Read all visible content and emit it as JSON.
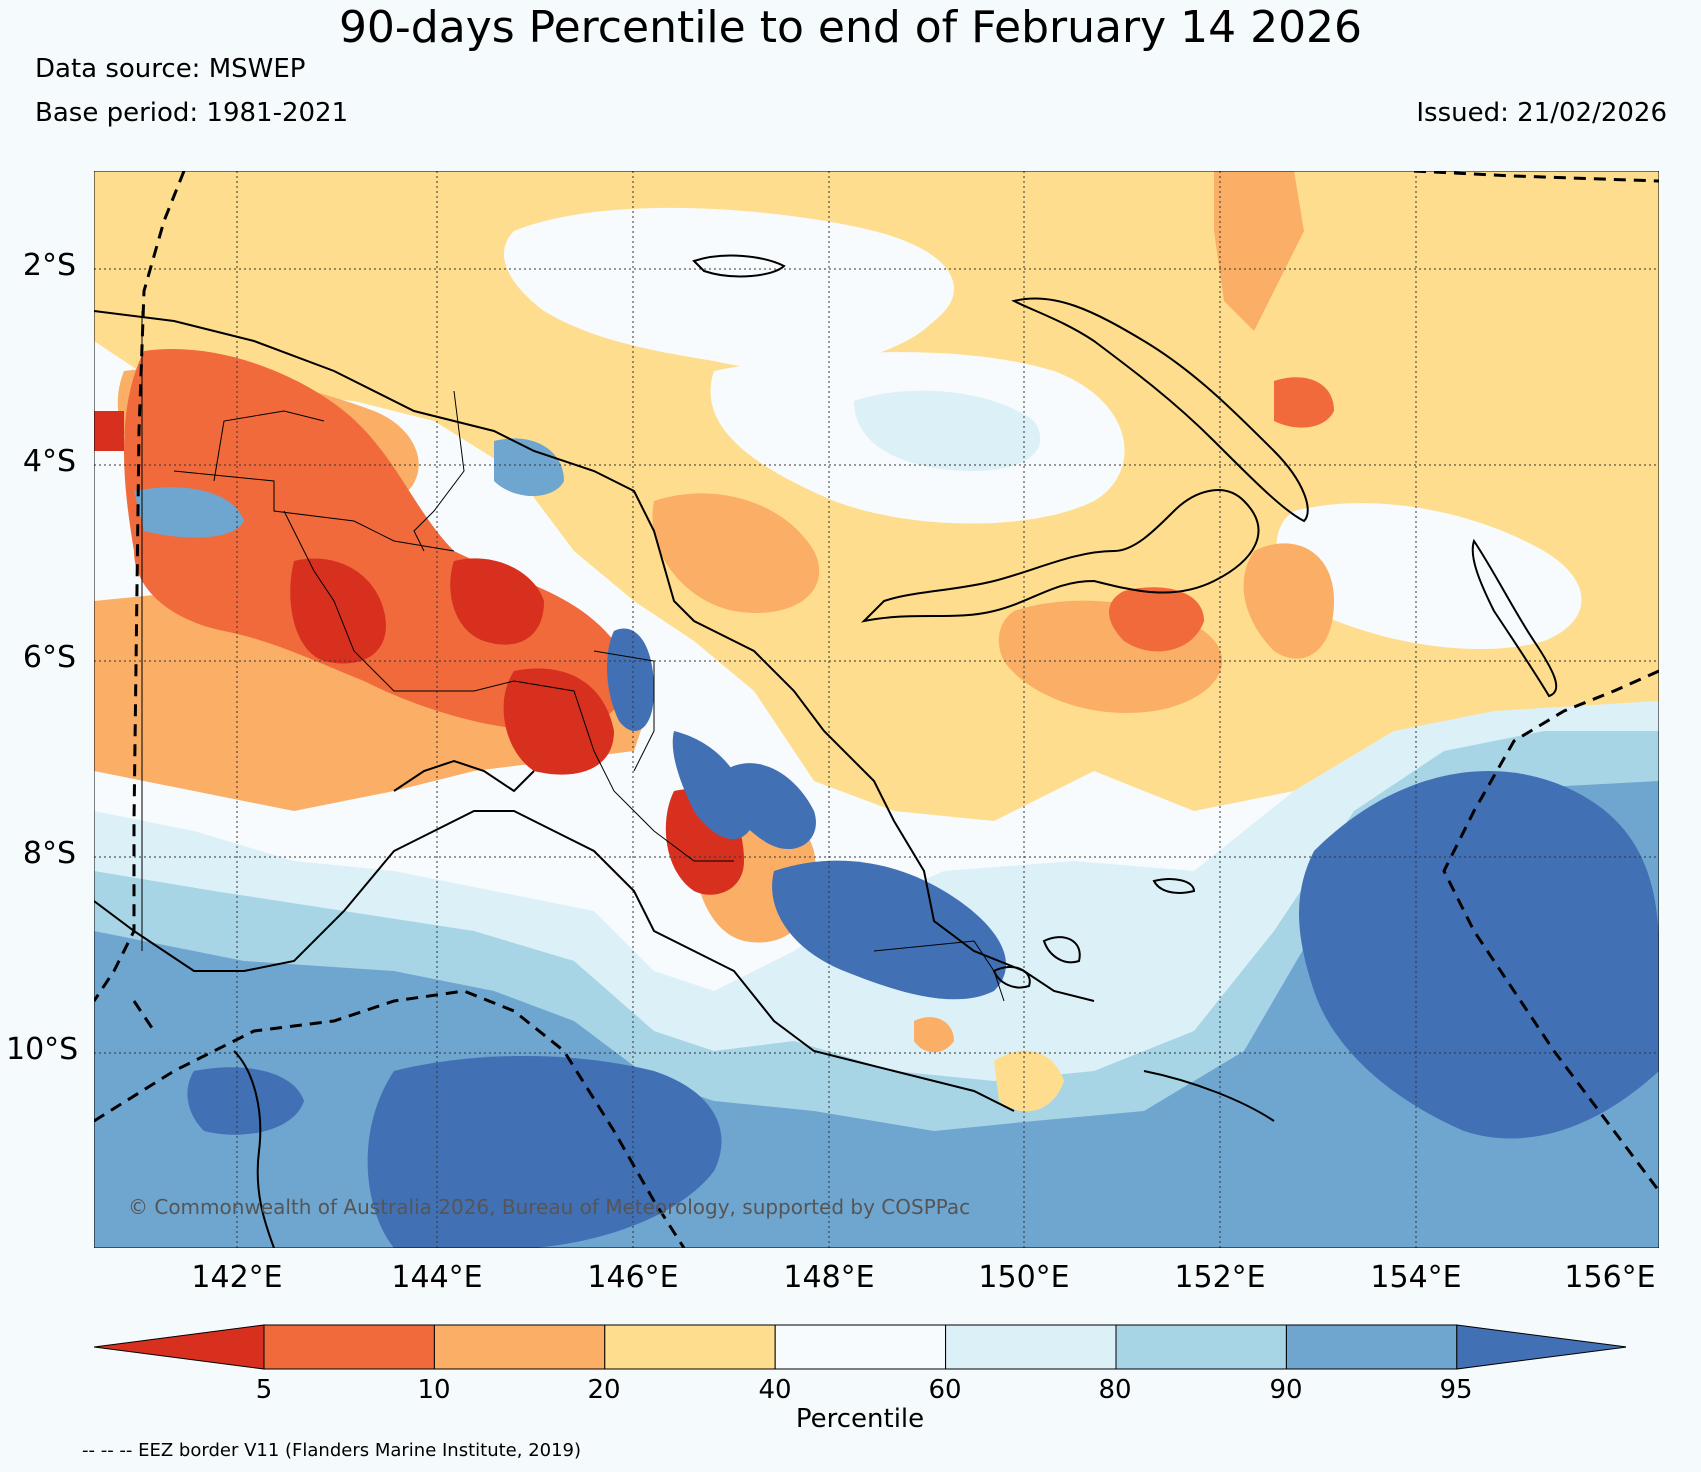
{
  "title": "90-days Percentile to end of February 14 2026",
  "data_source": "Data source: MSWEP",
  "base_period": "Base period: 1981-2021",
  "issued": "Issued: 21/02/2026",
  "copyright": "© Commonwealth of Australia 2026, Bureau of Meteorology, supported by COSPPac",
  "eez_note": "-- -- -- EEZ border V11 (Flanders Marine Institute, 2019)",
  "lat_labels": [
    "2°S",
    "4°S",
    "6°S",
    "8°S",
    "10°S"
  ],
  "lon_labels": [
    "142°E",
    "144°E",
    "146°E",
    "148°E",
    "150°E",
    "152°E",
    "154°E",
    "156°E"
  ],
  "colorbar": {
    "title": "Percentile",
    "ticks": [
      "5",
      "10",
      "20",
      "40",
      "60",
      "80",
      "90",
      "95"
    ],
    "bins": [
      {
        "range": "<5",
        "color": "#d7301f"
      },
      {
        "range": "5-10",
        "color": "#f06a3c"
      },
      {
        "range": "10-20",
        "color": "#fbae65"
      },
      {
        "range": "20-40",
        "color": "#fede8e"
      },
      {
        "range": "40-60",
        "color": "#f7fbfd"
      },
      {
        "range": "60-80",
        "color": "#dcf0f7"
      },
      {
        "range": "80-90",
        "color": "#a8d5e6"
      },
      {
        "range": "90-95",
        "color": "#6fa6d0"
      },
      {
        "range": ">95",
        "color": "#4270b4"
      }
    ]
  }
}
